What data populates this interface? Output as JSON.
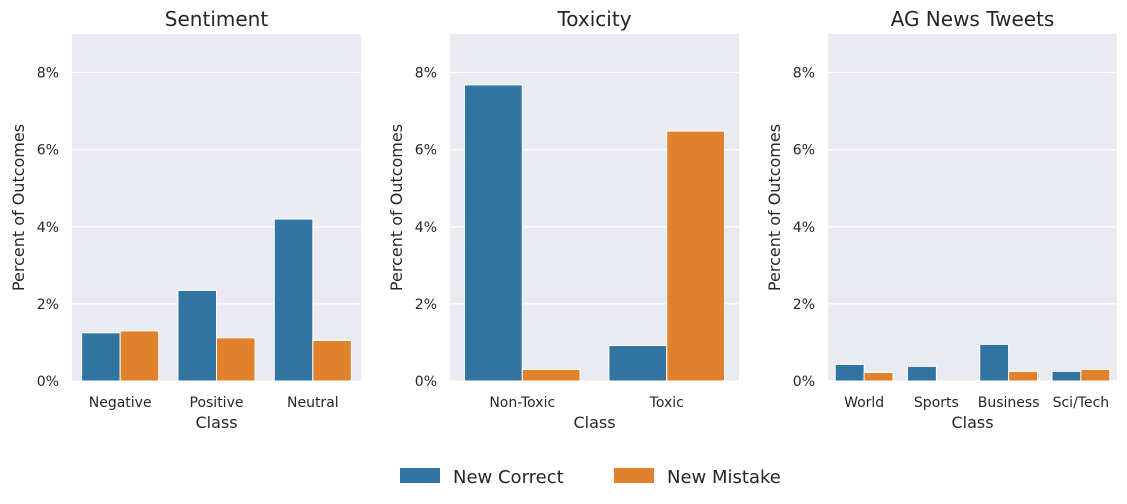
{
  "legend": {
    "entries": [
      {
        "label": "New Correct",
        "color": "#3274a1"
      },
      {
        "label": "New Mistake",
        "color": "#e1812c"
      }
    ],
    "placement": "bottom-center"
  },
  "chart_data": [
    {
      "type": "bar",
      "title": "Sentiment",
      "xlabel": "Class",
      "ylabel": "Percent of Outcomes",
      "ylim": [
        0,
        9
      ],
      "yticks": [
        "0%",
        "2%",
        "4%",
        "6%",
        "8%"
      ],
      "categories": [
        "Negative",
        "Positive",
        "Neutral"
      ],
      "series": [
        {
          "name": "New Correct",
          "values": [
            1.25,
            2.35,
            4.2
          ]
        },
        {
          "name": "New Mistake",
          "values": [
            1.3,
            1.12,
            1.05
          ]
        }
      ],
      "grid": true
    },
    {
      "type": "bar",
      "title": "Toxicity",
      "xlabel": "Class",
      "ylabel": "Percent of Outcomes",
      "ylim": [
        0,
        9
      ],
      "yticks": [
        "0%",
        "2%",
        "4%",
        "6%",
        "8%"
      ],
      "categories": [
        "Non-Toxic",
        "Toxic"
      ],
      "series": [
        {
          "name": "New Correct",
          "values": [
            7.68,
            0.92
          ]
        },
        {
          "name": "New Mistake",
          "values": [
            0.3,
            6.48
          ]
        }
      ],
      "grid": true
    },
    {
      "type": "bar",
      "title": "AG News Tweets",
      "xlabel": "Class",
      "ylabel": "Percent of Outcomes",
      "ylim": [
        0,
        9
      ],
      "yticks": [
        "0%",
        "2%",
        "4%",
        "6%",
        "8%"
      ],
      "categories": [
        "World",
        "Sports",
        "Business",
        "Sci/Tech"
      ],
      "series": [
        {
          "name": "New Correct",
          "values": [
            0.43,
            0.38,
            0.95,
            0.25
          ]
        },
        {
          "name": "New Mistake",
          "values": [
            0.22,
            0.0,
            0.25,
            0.3
          ]
        }
      ],
      "grid": true
    }
  ]
}
